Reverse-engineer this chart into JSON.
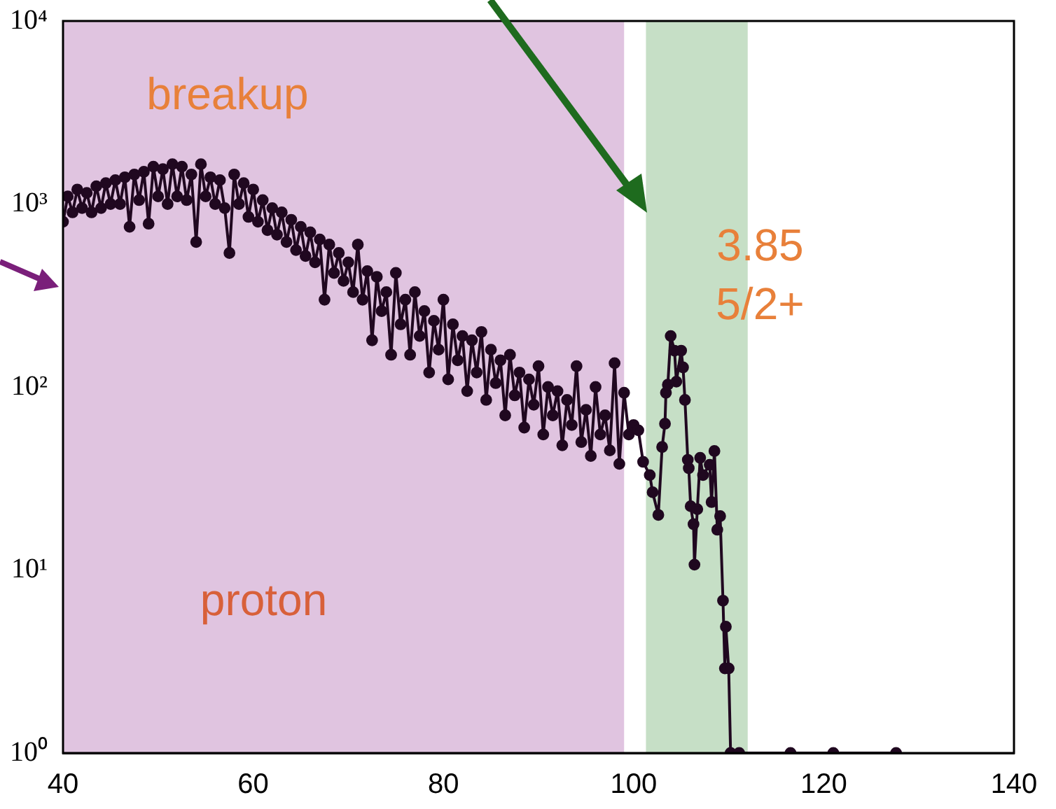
{
  "chart_data": {
    "type": "line",
    "marker": "circle",
    "line_style": "solid",
    "log": "y",
    "xlim": [
      40,
      140
    ],
    "xticks": [
      40,
      60,
      80,
      100,
      120,
      140
    ],
    "ylim": [
      1,
      10000
    ],
    "yticks": [
      {
        "value": 1,
        "label": "10⁰"
      },
      {
        "value": 10,
        "label": "10¹"
      },
      {
        "value": 100,
        "label": "10²"
      },
      {
        "value": 1000,
        "label": "10³"
      },
      {
        "value": 10000,
        "label": "10⁴"
      }
    ],
    "bands": [
      {
        "axis": "x",
        "from": 40,
        "to": 99,
        "color": "#e0c4e0"
      },
      {
        "axis": "x",
        "from": 101.3,
        "to": 112,
        "color": "#c6dfc6"
      }
    ],
    "annotations": [
      "breakup",
      "proton",
      "3.85\n5/2+"
    ],
    "series": [
      {
        "color": "#200820",
        "x": [
          40,
          40.5,
          41,
          41.5,
          42,
          42.5,
          43,
          43.5,
          44,
          44.5,
          45,
          45.5,
          46,
          46.5,
          47,
          47.5,
          48,
          48.5,
          49,
          49.5,
          50,
          50.5,
          51,
          51.5,
          52,
          52.5,
          53,
          53.5,
          54,
          54.5,
          55,
          55.5,
          56,
          56.5,
          57,
          57.5,
          58,
          58.5,
          59,
          59.5,
          60,
          60.5,
          61,
          61.5,
          62,
          62.5,
          63,
          63.5,
          64,
          64.5,
          65,
          65.5,
          66,
          66.5,
          67,
          67.5,
          68,
          68.5,
          69,
          69.5,
          70,
          70.5,
          71,
          71.5,
          72,
          72.5,
          73,
          73.5,
          74,
          74.5,
          75,
          75.5,
          76,
          76.5,
          77,
          77.5,
          78,
          78.5,
          79,
          79.5,
          80,
          80.5,
          81,
          81.5,
          82,
          82.5,
          83,
          83.5,
          84,
          84.5,
          85,
          85.5,
          86,
          86.5,
          87,
          87.5,
          88,
          88.5,
          89,
          89.5,
          90,
          90.5,
          91,
          91.5,
          92,
          92.5,
          93,
          93.5,
          94,
          94.5,
          95,
          95.5,
          96,
          96.5,
          97,
          97.5,
          98,
          98.5,
          99,
          99.5,
          100,
          100.5,
          101,
          101.7,
          102,
          102.6,
          103,
          103.3,
          103.4,
          103.6,
          103.9,
          104.3,
          104.5,
          105,
          105.2,
          105.4,
          105.7,
          105.8,
          106,
          106.3,
          106.4,
          106.7,
          107,
          107.3,
          108,
          108.2,
          108.5,
          108.8,
          109.1,
          109.4,
          109.6,
          109.7,
          110,
          110.2,
          111.1,
          116.5,
          121,
          127.6
        ],
        "values": [
          800,
          1100,
          900,
          1200,
          950,
          1150,
          900,
          1250,
          950,
          1300,
          1000,
          1350,
          1000,
          1400,
          750,
          1450,
          1050,
          1500,
          780,
          1600,
          1100,
          1550,
          1000,
          1650,
          1100,
          1600,
          1050,
          1450,
          620,
          1650,
          1100,
          1400,
          1000,
          1350,
          950,
          540,
          1450,
          1000,
          1300,
          850,
          1200,
          800,
          1050,
          720,
          950,
          680,
          900,
          620,
          820,
          560,
          750,
          520,
          700,
          480,
          640,
          300,
          600,
          420,
          540,
          380,
          480,
          330,
          600,
          300,
          430,
          180,
          400,
          260,
          330,
          150,
          420,
          220,
          300,
          150,
          330,
          190,
          260,
          120,
          230,
          160,
          300,
          110,
          220,
          140,
          190,
          95,
          180,
          120,
          200,
          85,
          160,
          105,
          140,
          70,
          150,
          90,
          120,
          60,
          110,
          80,
          130,
          55,
          100,
          70,
          95,
          48,
          85,
          62,
          130,
          50,
          75,
          42,
          100,
          55,
          70,
          45,
          135,
          38,
          93,
          55,
          62,
          58,
          39,
          33,
          26.6,
          20,
          47,
          63,
          93,
          103,
          190,
          158,
          107,
          158,
          128,
          85,
          40,
          36,
          22.3,
          17.8,
          10.7,
          21.5,
          41,
          33,
          37.6,
          23.5,
          44.7,
          16.6,
          19.7,
          6.8,
          2.9,
          4.9,
          2.9,
          1,
          1,
          1,
          1,
          1
        ]
      }
    ]
  }
}
